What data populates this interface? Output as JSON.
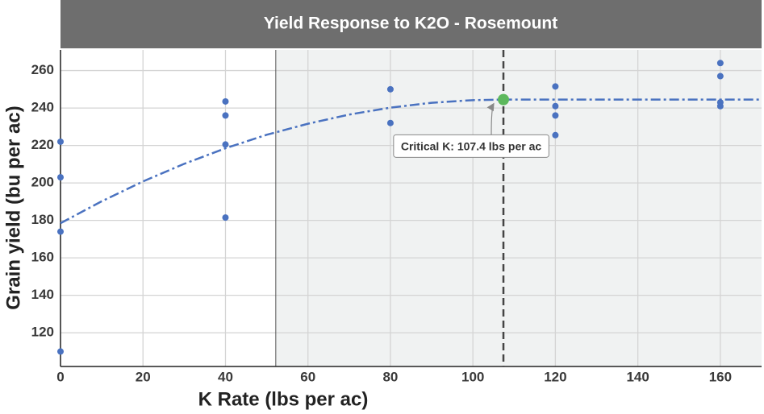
{
  "chart_data": {
    "type": "scatter",
    "title": "Yield Response to K2O - Rosemount",
    "x_label": "K Rate (lbs per ac)",
    "y_label": "Grain yield (bu per ac)",
    "xlim": [
      0,
      170
    ],
    "ylim": [
      102,
      271
    ],
    "xticks": [
      0,
      20,
      40,
      60,
      80,
      100,
      120,
      140,
      160
    ],
    "yticks": [
      120,
      140,
      160,
      180,
      200,
      220,
      240,
      260
    ],
    "grid": true,
    "shade_start": 52.2,
    "points": {
      "color": "#4a72c0",
      "x": [
        0,
        0,
        0,
        0,
        40,
        40,
        40,
        40,
        80,
        80,
        120,
        120,
        120,
        120,
        160,
        160,
        160,
        160
      ],
      "y": [
        222,
        203,
        174,
        110,
        243.5,
        236,
        220.5,
        181.5,
        250,
        232,
        251.5,
        241,
        236,
        225.5,
        264,
        257,
        243,
        241
      ]
    },
    "fit": {
      "color": "#4a72c0",
      "x": [
        0,
        10,
        20,
        30,
        40,
        50,
        60,
        70,
        80,
        90,
        100,
        107.4,
        120,
        130,
        140,
        150,
        160,
        170
      ],
      "y": [
        178.5,
        190.2,
        200.8,
        210.2,
        218.5,
        225.7,
        231.6,
        236.5,
        240.2,
        242.8,
        244.2,
        244.5,
        244.5,
        244.5,
        244.5,
        244.5,
        244.5,
        244.5
      ]
    },
    "critical": {
      "x": 107.4,
      "y": 244.5,
      "color": "#5cb85c",
      "label": "Critical K: 107.4 lbs per ac"
    }
  }
}
